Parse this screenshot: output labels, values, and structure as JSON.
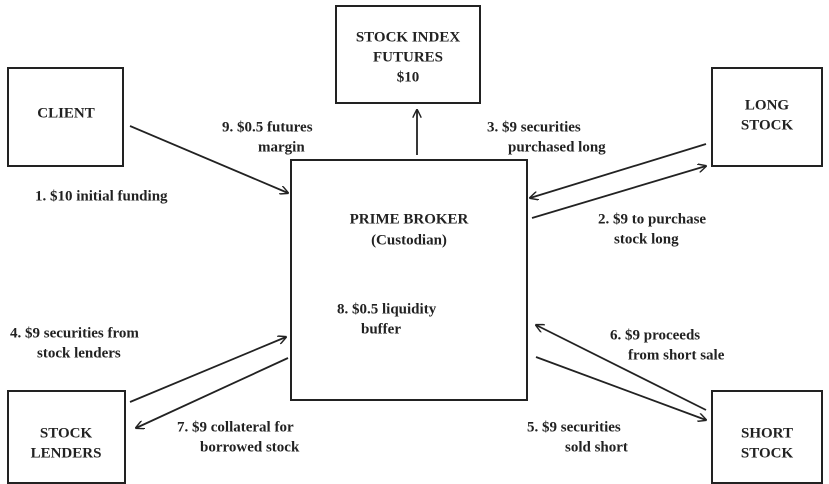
{
  "nodes": [
    {
      "lines": [
        "CLIENT"
      ]
    },
    {
      "lines": [
        "STOCK INDEX",
        "FUTURES",
        "$10"
      ]
    },
    {
      "lines": [
        "LONG",
        "STOCK"
      ]
    },
    {
      "lines": [
        "PRIME BROKER",
        "(Custodian)"
      ]
    },
    {
      "lines": [
        "STOCK",
        "LENDERS"
      ]
    },
    {
      "lines": [
        "SHORT",
        "STOCK"
      ]
    }
  ],
  "flows": [
    {
      "lines": [
        "1. $10 initial funding"
      ]
    },
    {
      "lines": [
        "2. $9 to purchase",
        "stock long"
      ]
    },
    {
      "lines": [
        "3. $9 securities",
        "purchased long"
      ]
    },
    {
      "lines": [
        "4. $9 securities from",
        "stock lenders"
      ]
    },
    {
      "lines": [
        "5. $9 securities",
        "sold short"
      ]
    },
    {
      "lines": [
        "6. $9 proceeds",
        "from short sale"
      ]
    },
    {
      "lines": [
        "7. $9 collateral for",
        "borrowed stock"
      ]
    },
    {
      "lines": [
        "8. $0.5 liquidity",
        "buffer"
      ]
    },
    {
      "lines": [
        "9. $0.5 futures",
        "margin"
      ]
    }
  ]
}
